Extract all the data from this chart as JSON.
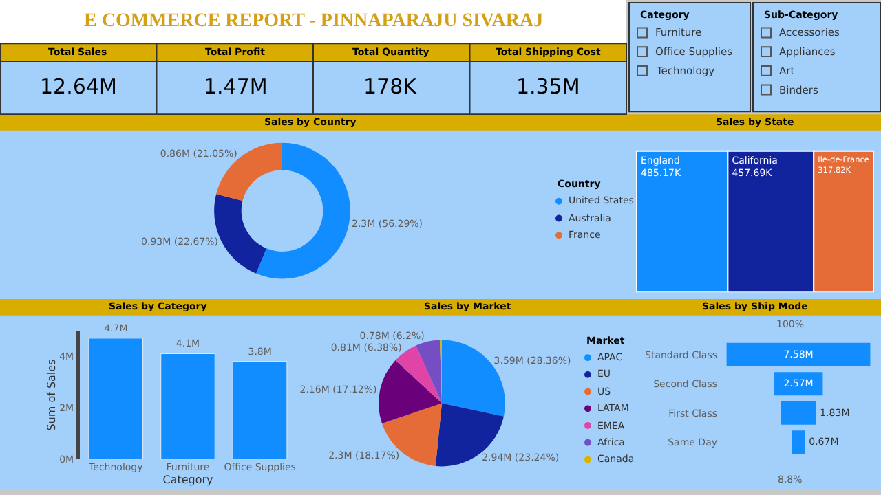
{
  "chart_data": [
    {
      "type": "other",
      "title": "E COMMERCE REPORT - PINNAPARAJU SIVARAJ",
      "annotations": [
        "Total Sales",
        "12.64M",
        "Total Profit",
        "1.47M",
        "Total Quantity",
        "178K",
        "Total Shipping Cost",
        "1.35M"
      ]
    },
    {
      "type": "other",
      "title": "Category",
      "annotations": [
        "Furniture",
        "Office Supplies",
        "Technology"
      ]
    },
    {
      "type": "other",
      "title": "Sub-Category",
      "annotations": [
        "Accessories",
        "Appliances",
        "Art",
        "Binders"
      ]
    },
    {
      "type": "donut",
      "title": "Sales by Country",
      "legend_title": "Country",
      "legend": "right",
      "categories": [
        "United States",
        "Australia",
        "France"
      ],
      "values": [
        56.29,
        22.67,
        21.05
      ],
      "colors": [
        "#118dff",
        "#12239e",
        "#e66c37"
      ],
      "value_labels": [
        "2.3M (56.29%)",
        "0.93M (22.67%)",
        "0.86M (21.05%)"
      ]
    },
    {
      "type": "other",
      "title": "Sales by State",
      "categories": [
        "England",
        "California",
        "Ile-de-France"
      ],
      "values": [
        485.17,
        457.69,
        317.82
      ],
      "colors": [
        "#118dff",
        "#12239e",
        "#e66c37"
      ],
      "value_labels": [
        "485.17K",
        "457.69K",
        "317.82K"
      ]
    },
    {
      "type": "bar",
      "title": "Sales by Category",
      "xlabel": "Category",
      "ylabel": "Sum of Sales",
      "categories": [
        "Technology",
        "Furniture",
        "Office Supplies"
      ],
      "values": [
        4.7,
        4.1,
        3.8
      ],
      "color": "#118dff",
      "value_labels": [
        "4.7M",
        "4.1M",
        "3.8M"
      ],
      "ylim": [
        0,
        5
      ],
      "yticks": [
        {
          "value": 0,
          "label": "0M"
        },
        {
          "value": 2,
          "label": "2M"
        },
        {
          "value": 4,
          "label": "4M"
        }
      ]
    },
    {
      "type": "pie",
      "title": "Sales by Market",
      "legend_title": "Market",
      "legend": "right",
      "categories": [
        "APAC",
        "EU",
        "US",
        "LATAM",
        "EMEA",
        "Africa",
        "Canada"
      ],
      "values": [
        28.36,
        23.24,
        18.17,
        17.12,
        6.38,
        6.2,
        0.53
      ],
      "colors": [
        "#118dff",
        "#12239e",
        "#e66c37",
        "#6b007b",
        "#e044a7",
        "#744ec2",
        "#d9b300"
      ],
      "value_labels": [
        "3.59M (28.36%)",
        "2.94M (23.24%)",
        "2.3M (18.17%)",
        "2.16M (17.12%)",
        "0.81M (6.38%)",
        "0.78M (6.2%)",
        null
      ]
    },
    {
      "type": "other",
      "title": "Sales by Ship Mode",
      "categories": [
        "Standard Class",
        "Second Class",
        "First Class",
        "Same Day"
      ],
      "values": [
        7.58,
        2.57,
        1.83,
        0.67
      ],
      "color": "#118dff",
      "value_labels": [
        "7.58M",
        "2.57M",
        "1.83M",
        "0.67M"
      ],
      "annotations": [
        "100%",
        "8.8%"
      ]
    }
  ]
}
